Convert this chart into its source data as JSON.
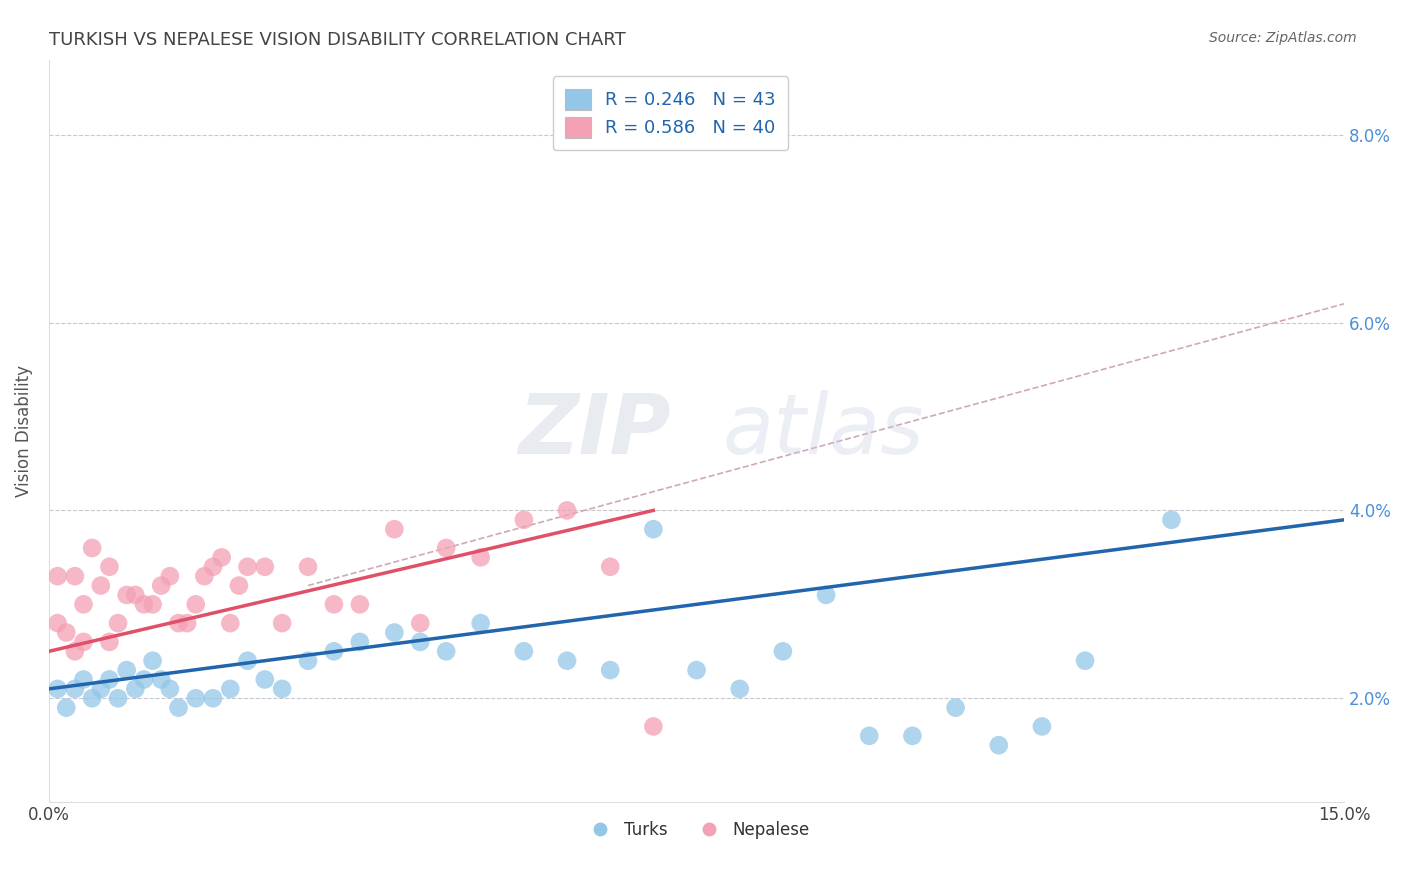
{
  "title": "TURKISH VS NEPALESE VISION DISABILITY CORRELATION CHART",
  "source": "Source: ZipAtlas.com",
  "ylabel": "Vision Disability",
  "xlim": [
    0.0,
    0.15
  ],
  "ylim": [
    0.009,
    0.088
  ],
  "xticks": [
    0.0,
    0.05,
    0.1,
    0.15
  ],
  "xticklabels": [
    "0.0%",
    "",
    "",
    "15.0%"
  ],
  "ytick_vals": [
    0.02,
    0.04,
    0.06,
    0.08
  ],
  "ytick_labels": [
    "2.0%",
    "4.0%",
    "6.0%",
    "8.0%"
  ],
  "turks_R": 0.246,
  "turks_N": 43,
  "nepalese_R": 0.586,
  "nepalese_N": 40,
  "turks_color": "#94c6e7",
  "nepalese_color": "#f4a0b5",
  "turks_line_color": "#2166ac",
  "nepalese_line_color": "#e05068",
  "dashed_line_color": "#c8c8d0",
  "diag_dashed_color": "#d0a8b8",
  "background_color": "#ffffff",
  "title_color": "#444444",
  "source_color": "#666666",
  "yaxis_label_color": "#4a90d9",
  "turks_x": [
    0.001,
    0.002,
    0.003,
    0.004,
    0.005,
    0.006,
    0.007,
    0.008,
    0.009,
    0.01,
    0.011,
    0.012,
    0.013,
    0.014,
    0.015,
    0.017,
    0.019,
    0.021,
    0.023,
    0.025,
    0.027,
    0.03,
    0.033,
    0.036,
    0.04,
    0.043,
    0.046,
    0.05,
    0.055,
    0.06,
    0.065,
    0.07,
    0.075,
    0.08,
    0.085,
    0.09,
    0.095,
    0.1,
    0.105,
    0.11,
    0.115,
    0.12,
    0.13
  ],
  "turks_y": [
    0.021,
    0.019,
    0.021,
    0.022,
    0.02,
    0.021,
    0.022,
    0.02,
    0.023,
    0.021,
    0.022,
    0.024,
    0.022,
    0.021,
    0.019,
    0.02,
    0.02,
    0.021,
    0.024,
    0.022,
    0.021,
    0.024,
    0.025,
    0.026,
    0.027,
    0.026,
    0.025,
    0.028,
    0.025,
    0.024,
    0.023,
    0.038,
    0.023,
    0.021,
    0.025,
    0.031,
    0.016,
    0.016,
    0.019,
    0.015,
    0.017,
    0.024,
    0.039
  ],
  "nepalese_x": [
    0.001,
    0.001,
    0.002,
    0.003,
    0.003,
    0.004,
    0.004,
    0.005,
    0.006,
    0.007,
    0.007,
    0.008,
    0.009,
    0.01,
    0.011,
    0.012,
    0.013,
    0.014,
    0.015,
    0.016,
    0.017,
    0.018,
    0.019,
    0.02,
    0.021,
    0.022,
    0.023,
    0.025,
    0.027,
    0.03,
    0.033,
    0.036,
    0.04,
    0.043,
    0.046,
    0.05,
    0.055,
    0.06,
    0.065,
    0.07
  ],
  "nepalese_y": [
    0.033,
    0.028,
    0.027,
    0.033,
    0.025,
    0.026,
    0.03,
    0.036,
    0.032,
    0.026,
    0.034,
    0.028,
    0.031,
    0.031,
    0.03,
    0.03,
    0.032,
    0.033,
    0.028,
    0.028,
    0.03,
    0.033,
    0.034,
    0.035,
    0.028,
    0.032,
    0.034,
    0.034,
    0.028,
    0.034,
    0.03,
    0.03,
    0.038,
    0.028,
    0.036,
    0.035,
    0.039,
    0.04,
    0.034,
    0.017
  ],
  "legend_label_turks": "R = 0.246   N = 43",
  "legend_label_nepalese": "R = 0.586   N = 40",
  "turks_line_x": [
    0.0,
    0.15
  ],
  "turks_line_y": [
    0.021,
    0.039
  ],
  "nepalese_line_x": [
    0.0,
    0.07
  ],
  "nepalese_line_y": [
    0.025,
    0.04
  ],
  "diag_line_x": [
    0.03,
    0.15
  ],
  "diag_line_y": [
    0.032,
    0.062
  ]
}
